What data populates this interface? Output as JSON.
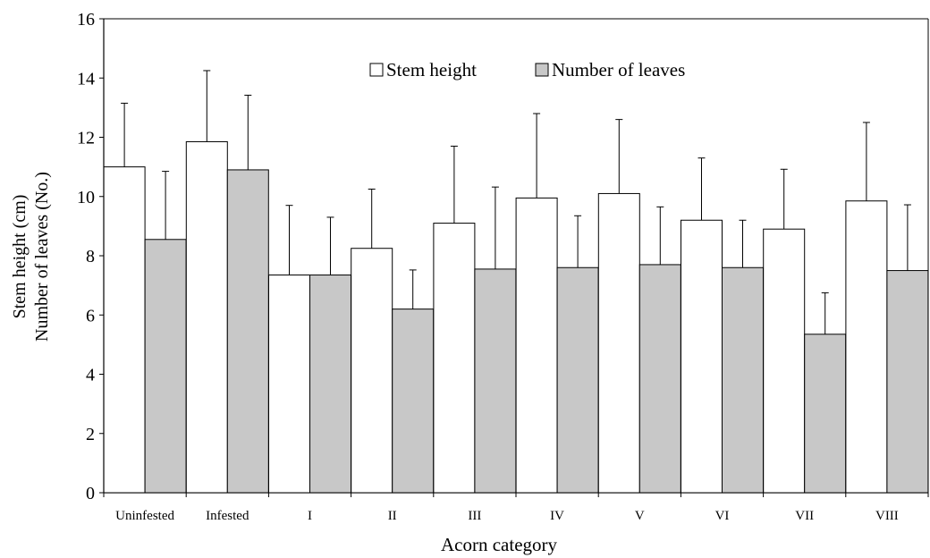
{
  "chart_data": {
    "type": "bar",
    "title": "",
    "xlabel": "Acorn category",
    "ylabel_lines": [
      "Stem height (cm)",
      "Number of leaves (No.)"
    ],
    "ylim": [
      0,
      16
    ],
    "yticks": [
      0,
      2,
      4,
      6,
      8,
      10,
      12,
      14,
      16
    ],
    "grid": false,
    "legend_position": "top-center",
    "categories": [
      "Uninfested",
      "Infested",
      "I",
      "II",
      "III",
      "IV",
      "V",
      "VI",
      "VII",
      "VIII"
    ],
    "series": [
      {
        "name": "Stem height",
        "fill": "#ffffff",
        "values": [
          11.0,
          11.85,
          7.35,
          8.25,
          9.1,
          9.95,
          10.1,
          9.2,
          8.9,
          9.85
        ],
        "error_upper": [
          13.15,
          14.25,
          9.7,
          10.25,
          11.7,
          12.8,
          12.6,
          11.3,
          10.92,
          12.5
        ]
      },
      {
        "name": "Number of leaves",
        "fill": "#c8c8c8",
        "values": [
          8.55,
          10.9,
          7.35,
          6.2,
          7.55,
          7.6,
          7.7,
          7.6,
          5.35,
          7.5
        ],
        "error_upper": [
          10.85,
          13.42,
          9.3,
          7.52,
          10.32,
          9.35,
          9.65,
          9.2,
          6.75,
          9.72
        ]
      }
    ]
  }
}
